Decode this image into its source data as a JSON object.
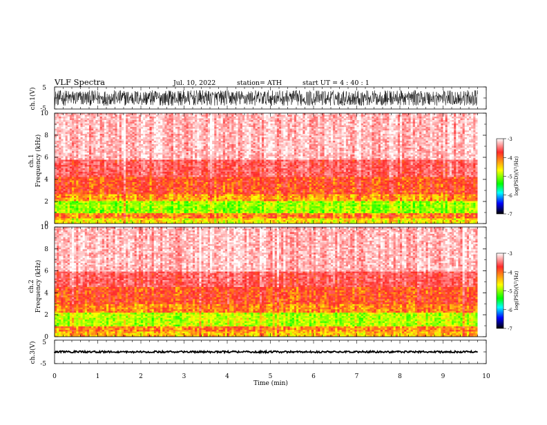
{
  "header": {
    "title": "VLF  Spectra",
    "date": "Jul.  10,  2022",
    "station": "station= ATH",
    "start": "start  UT  =   4  : 40 : 1"
  },
  "panels": {
    "ch1_wave": {
      "label": "ch.1(V)",
      "ticks": [
        "5",
        "-5"
      ]
    },
    "spec1": {
      "ylabel_top": "ch.1",
      "ylabel_bottom": "Frequency  (kHz)",
      "ticks": [
        "0",
        "2",
        "4",
        "6",
        "8",
        "10"
      ]
    },
    "spec2": {
      "ylabel_top": "ch.2",
      "ylabel_bottom": "Frequency  (kHz)",
      "ticks": [
        "0",
        "2",
        "4",
        "6",
        "8",
        "10"
      ]
    },
    "ch3_wave": {
      "label": "ch.3(V)",
      "ticks": [
        "5",
        "-5"
      ]
    }
  },
  "colorbar": {
    "label": "log(PSD)(V²/Hz)",
    "ticks": [
      "-3",
      "-4",
      "-5",
      "-6",
      "-7"
    ],
    "colors": [
      "#ffffff",
      "#ff2a2a",
      "#ffff00",
      "#00ff00",
      "#00ffff",
      "#0000ff",
      "#000000"
    ]
  },
  "xaxis": {
    "label": "Time  (min)",
    "ticks": [
      "0",
      "1",
      "2",
      "3",
      "4",
      "5",
      "6",
      "7",
      "8",
      "9",
      "10"
    ]
  },
  "chart_data": [
    {
      "type": "line",
      "name": "ch.1 waveform",
      "ylabel": "ch.1(V)",
      "ylim": [
        -5,
        5
      ],
      "xlim": [
        0,
        9.8
      ],
      "x_unit": "min",
      "amplitude_range": [
        -3.5,
        3.5
      ]
    },
    {
      "type": "heatmap",
      "name": "ch.1 spectrogram",
      "xlabel": "Time  (min)",
      "ylabel": "Frequency  (kHz)",
      "xlim": [
        0,
        9.8
      ],
      "ylim": [
        0,
        10
      ],
      "zlabel": "log(PSD)(V²/Hz)",
      "zlim": [
        -7,
        -3
      ],
      "bands": [
        {
          "freq_khz": [
            0,
            0.4
          ],
          "log_psd": -4.6
        },
        {
          "freq_khz": [
            0.4,
            0.9
          ],
          "log_psd": -4.2
        },
        {
          "freq_khz": [
            0.9,
            2.0
          ],
          "log_psd": -4.9
        },
        {
          "freq_khz": [
            2.0,
            2.6
          ],
          "log_psd": -4.3
        },
        {
          "freq_khz": [
            2.6,
            4.2
          ],
          "log_psd": -4.0
        },
        {
          "freq_khz": [
            4.2,
            5.8
          ],
          "log_psd": -3.7
        },
        {
          "freq_khz": [
            5.8,
            10.0
          ],
          "log_psd": -3.3
        }
      ]
    },
    {
      "type": "heatmap",
      "name": "ch.2 spectrogram",
      "xlabel": "Time  (min)",
      "ylabel": "Frequency  (kHz)",
      "xlim": [
        0,
        9.8
      ],
      "ylim": [
        0,
        10
      ],
      "zlabel": "log(PSD)(V²/Hz)",
      "zlim": [
        -7,
        -3
      ],
      "bands": [
        {
          "freq_khz": [
            0,
            0.5
          ],
          "log_psd": -4.4
        },
        {
          "freq_khz": [
            0.5,
            1.0
          ],
          "log_psd": -4.2
        },
        {
          "freq_khz": [
            1.0,
            2.2
          ],
          "log_psd": -4.8
        },
        {
          "freq_khz": [
            2.2,
            3.0
          ],
          "log_psd": -4.2
        },
        {
          "freq_khz": [
            3.0,
            4.6
          ],
          "log_psd": -4.0
        },
        {
          "freq_khz": [
            4.6,
            6.0
          ],
          "log_psd": -3.7
        },
        {
          "freq_khz": [
            6.0,
            10.0
          ],
          "log_psd": -3.3
        }
      ]
    },
    {
      "type": "line",
      "name": "ch.3 waveform",
      "ylabel": "ch.3(V)",
      "ylim": [
        -5,
        5
      ],
      "xlim": [
        0,
        9.8
      ],
      "x_unit": "min",
      "amplitude_range": [
        -0.4,
        0.4
      ]
    }
  ]
}
